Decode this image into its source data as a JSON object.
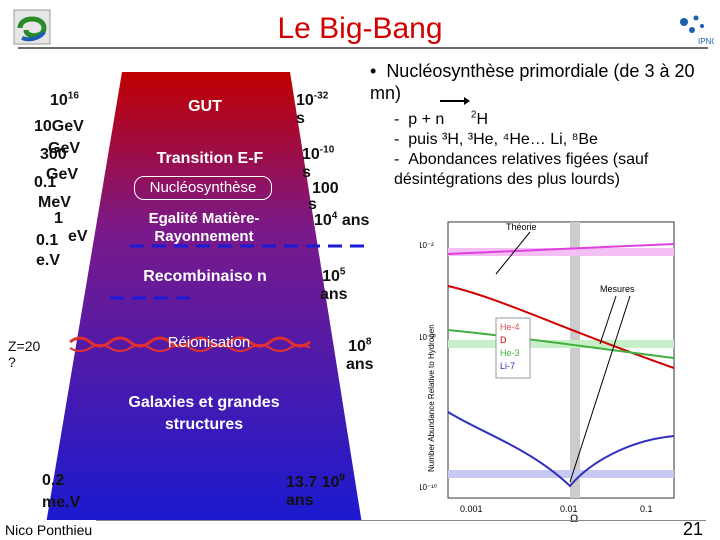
{
  "title": "Le Big-Bang",
  "author": "Nico Ponthieu",
  "page_number": "21",
  "energy_labels": [
    {
      "base": "10",
      "sup": "16",
      "unit": "GeV"
    },
    {
      "base": "300",
      "sup": "",
      "unit": "GeV"
    },
    {
      "base": "0.1",
      "sup": "",
      "unit": "MeV"
    },
    {
      "base": "1",
      "sup": "",
      "unit": ""
    },
    {
      "base": "0.1",
      "sup": "",
      "unit": "eV"
    }
  ],
  "energy_overlap": {
    "a": "1016",
    "b": "10",
    "c": "GeV",
    "d": "300",
    "e": "GeV",
    "f": "0.1",
    "g": "MeV",
    "h": "1",
    "i": "0.1",
    "j": "eV",
    "k": "e.V"
  },
  "cone": {
    "gut": "GUT",
    "transition": "Transition E-F",
    "nucleo": "Nucléosynthèse",
    "egalite": "Egalité Matière-Rayonnement",
    "recomb": "Recombinaiso n",
    "reion": "Réionisation",
    "galaxies": "Galaxies et grandes structures"
  },
  "time_labels": {
    "t1_base": "10",
    "t1_sup": "-32",
    "t1_unit": "s",
    "t2_base": "10",
    "t2_sup": "-10",
    "t2_unit": "s",
    "t3": "100",
    "t3_unit": "s",
    "t4_base": "10",
    "t4_sup": "4",
    "t4_unit": "ans",
    "t5_base": "10",
    "t5_sup": "5",
    "t5_unit": "ans",
    "t6_base": "10",
    "t6_sup": "8",
    "t6_unit": "ans",
    "t7_base": "13.7 10",
    "t7_sup": "9",
    "t7_unit": "ans"
  },
  "z_label": "Z=20 ?",
  "bottom_energy": "0.2 me.V",
  "bullets": {
    "main": "Nucléosynthèse primordiale (de 3 à 20 mn)",
    "sub1_a": "p + n",
    "sub1_b": "H",
    "sub1_sup": "2",
    "sub2": "puis ³H, ³He, ⁴He… Li, ⁸Be",
    "sub3": "Abondances relatives figées (sauf désintégrations des plus lourds)"
  },
  "graph": {
    "theory_label": "Théorie",
    "measures_label": "Mesures",
    "ylabel": "Number Abundance Relative to Hydrogen",
    "xlabel": "Ω",
    "x_ticks": [
      "0.001",
      "0.01",
      "0.1"
    ],
    "y_ticks": [
      "10⁻²",
      "10⁻⁵",
      "10⁻¹⁰"
    ],
    "legend": [
      {
        "name": "He-4",
        "color": "#e05050"
      },
      {
        "name": "D",
        "color": "#d00000"
      },
      {
        "name": "He-3",
        "color": "#40b040"
      },
      {
        "name": "Li-7",
        "color": "#3030c0"
      }
    ]
  },
  "colors": {
    "title": "#d40000",
    "cone_top": "#c00000",
    "cone_bottom": "#1a1ad0"
  }
}
